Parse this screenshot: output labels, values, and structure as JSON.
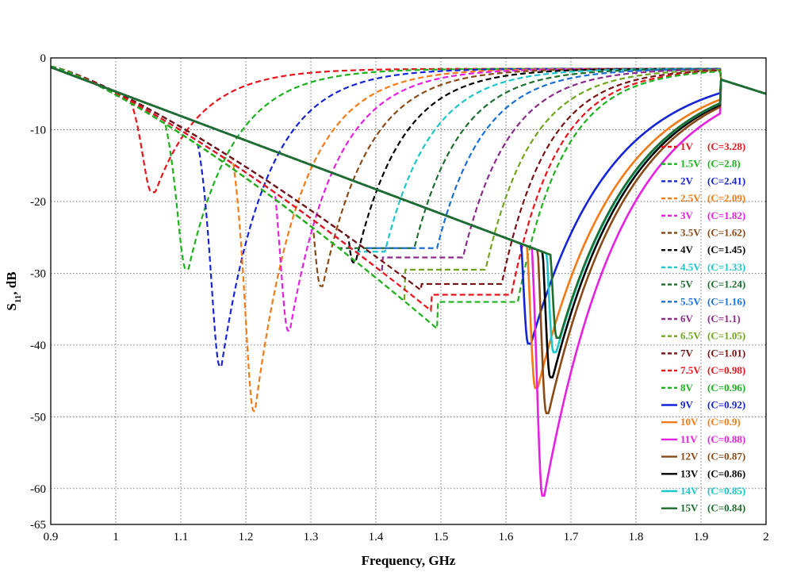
{
  "chart_data": {
    "type": "line",
    "title": "",
    "xlabel": "Frequency, GHz",
    "ylabel_main": "S",
    "ylabel_sub": "11",
    "ylabel_suffix": ", dB",
    "xlim": [
      0.9,
      2.0
    ],
    "ylim": [
      -65,
      0
    ],
    "grid": true,
    "grid_style": "dotted",
    "legend_position": "right",
    "x_ticks": [
      "0.9",
      "1",
      "1.1",
      "1.2",
      "1.3",
      "1.4",
      "1.5",
      "1.6",
      "1.7",
      "1.8",
      "1.9",
      "2"
    ],
    "y_ticks": [
      "0",
      "-10",
      "-20",
      "-30",
      "-40",
      "-50",
      "-60",
      "-65"
    ],
    "series": [
      {
        "voltage": "1V",
        "cap": "(C=3.28)",
        "color": "#e8141c",
        "dash": true,
        "f0": 1.055,
        "depth": -18.7
      },
      {
        "voltage": "1.5V",
        "cap": "(C=2.8)",
        "color": "#1db21d",
        "dash": true,
        "f0": 1.108,
        "depth": -29.5
      },
      {
        "voltage": "2V",
        "cap": "(C=2.41)",
        "color": "#1524d6",
        "dash": true,
        "f0": 1.16,
        "depth": -43.0
      },
      {
        "voltage": "2.5V",
        "cap": "(C=2.09)",
        "color": "#f27a17",
        "dash": true,
        "f0": 1.212,
        "depth": -49.2
      },
      {
        "voltage": "3V",
        "cap": "(C=1.82)",
        "color": "#e620e0",
        "dash": true,
        "f0": 1.265,
        "depth": -38.0
      },
      {
        "voltage": "3.5V",
        "cap": "(C=1.62)",
        "color": "#8a4a17",
        "dash": true,
        "f0": 1.315,
        "depth": -31.8
      },
      {
        "voltage": "4V",
        "cap": "(C=1.45)",
        "color": "#000000",
        "dash": true,
        "f0": 1.365,
        "depth": -28.5
      },
      {
        "voltage": "4.5V",
        "cap": "(C=1.33)",
        "color": "#1bc6c9",
        "dash": true,
        "f0": 1.41,
        "depth": -27.0
      },
      {
        "voltage": "5V",
        "cap": "(C=1.24)",
        "color": "#1d6e2e",
        "dash": true,
        "f0": 1.455,
        "depth": -26.5
      },
      {
        "voltage": "5.5V",
        "cap": "(C=1.16)",
        "color": "#1a6fd6",
        "dash": true,
        "f0": 1.49,
        "depth": -26.5
      },
      {
        "voltage": "6V",
        "cap": "(C=1.1)",
        "color": "#8b2a8b",
        "dash": true,
        "f0": 1.53,
        "depth": -27.8
      },
      {
        "voltage": "6.5V",
        "cap": "(C=1.05)",
        "color": "#6ea51d",
        "dash": true,
        "f0": 1.565,
        "depth": -29.5
      },
      {
        "voltage": "7V",
        "cap": "(C=1.01)",
        "color": "#7a1212",
        "dash": true,
        "f0": 1.59,
        "depth": -31.5
      },
      {
        "voltage": "7.5V",
        "cap": "(C=0.98)",
        "color": "#e8141c",
        "dash": true,
        "f0": 1.605,
        "depth": -33.0
      },
      {
        "voltage": "8V",
        "cap": "(C=0.96)",
        "color": "#1db21d",
        "dash": true,
        "f0": 1.615,
        "depth": -34.0
      },
      {
        "voltage": "9V",
        "cap": "(C=0.92)",
        "color": "#1524d6",
        "dash": false,
        "f0": 1.634,
        "depth": -39.8
      },
      {
        "voltage": "10V",
        "cap": "(C=0.9)",
        "color": "#f27a17",
        "dash": false,
        "f0": 1.645,
        "depth": -46.0
      },
      {
        "voltage": "11V",
        "cap": "(C=0.88)",
        "color": "#e620e0",
        "dash": false,
        "f0": 1.656,
        "depth": -61.0
      },
      {
        "voltage": "12V",
        "cap": "(C=0.87)",
        "color": "#8a4a17",
        "dash": false,
        "f0": 1.662,
        "depth": -49.5
      },
      {
        "voltage": "13V",
        "cap": "(C=0.86)",
        "color": "#000000",
        "dash": false,
        "f0": 1.668,
        "depth": -44.5
      },
      {
        "voltage": "14V",
        "cap": "(C=0.85)",
        "color": "#1bc6c9",
        "dash": false,
        "f0": 1.673,
        "depth": -41.0
      },
      {
        "voltage": "15V",
        "cap": "(C=0.84)",
        "color": "#1d6e2e",
        "dash": false,
        "f0": 1.678,
        "depth": -39.0
      }
    ]
  }
}
